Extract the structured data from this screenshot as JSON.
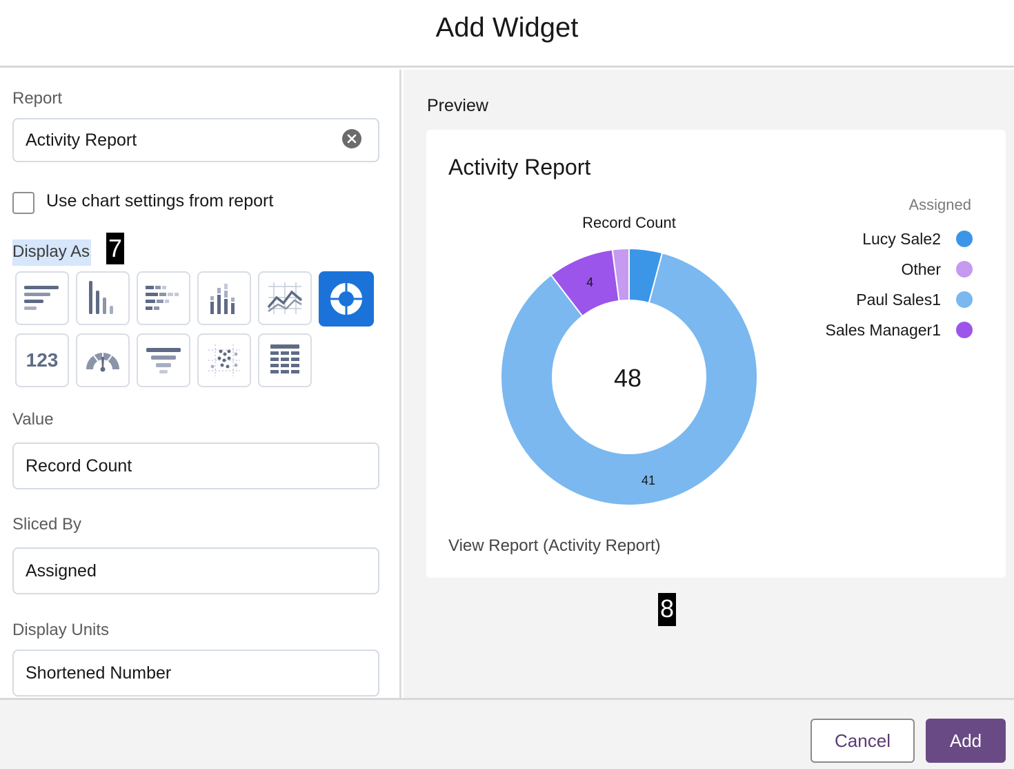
{
  "dialog": {
    "title": "Add Widget"
  },
  "form": {
    "report_label": "Report",
    "report_value": "Activity Report",
    "use_chart_settings_label": "Use chart settings from report",
    "use_chart_settings_checked": false,
    "display_as_label": "Display As",
    "chart_types": [
      {
        "name": "horizontal-bar-chart-icon",
        "selected": false
      },
      {
        "name": "vertical-bar-chart-icon",
        "selected": false
      },
      {
        "name": "stacked-horizontal-bar-icon",
        "selected": false
      },
      {
        "name": "stacked-vertical-bar-icon",
        "selected": false
      },
      {
        "name": "line-chart-icon",
        "selected": false
      },
      {
        "name": "donut-chart-icon",
        "selected": true
      },
      {
        "name": "metric-icon",
        "text": "123",
        "selected": false
      },
      {
        "name": "gauge-icon",
        "selected": false
      },
      {
        "name": "funnel-icon",
        "selected": false
      },
      {
        "name": "scatter-plot-icon",
        "selected": false
      },
      {
        "name": "table-icon",
        "selected": false
      }
    ],
    "value_label": "Value",
    "value_value": "Record Count",
    "sliced_by_label": "Sliced By",
    "sliced_by_value": "Assigned",
    "display_units_label": "Display Units",
    "display_units_value": "Shortened Number"
  },
  "annotations": {
    "badge_left": "7",
    "badge_right": "8"
  },
  "preview": {
    "label": "Preview",
    "card_title": "Activity Report",
    "view_report_link": "View Report (Activity Report)"
  },
  "chart_data": {
    "type": "pie",
    "variant": "donut",
    "title": "Record Count",
    "center_total": "48",
    "legend_title": "Assigned",
    "legend_position": "right",
    "series": [
      {
        "name": "Lucy Sale2",
        "value": 2,
        "color": "#3b96e8"
      },
      {
        "name": "Other",
        "value": 1,
        "color": "#c59af0"
      },
      {
        "name": "Paul Sales1",
        "value": 41,
        "color": "#7ab8ef",
        "data_label": "41"
      },
      {
        "name": "Sales Manager1",
        "value": 4,
        "color": "#9b55ea",
        "data_label": "4"
      }
    ],
    "slice_order_clockwise_from_top": [
      "Lucy Sale2",
      "Paul Sales1",
      "Sales Manager1",
      "Other"
    ]
  },
  "footer": {
    "cancel_label": "Cancel",
    "add_label": "Add"
  },
  "colors": {
    "brand_button": "#6a4a84",
    "selected_type": "#1b73d9",
    "icon_gray": "#5f6b85"
  }
}
